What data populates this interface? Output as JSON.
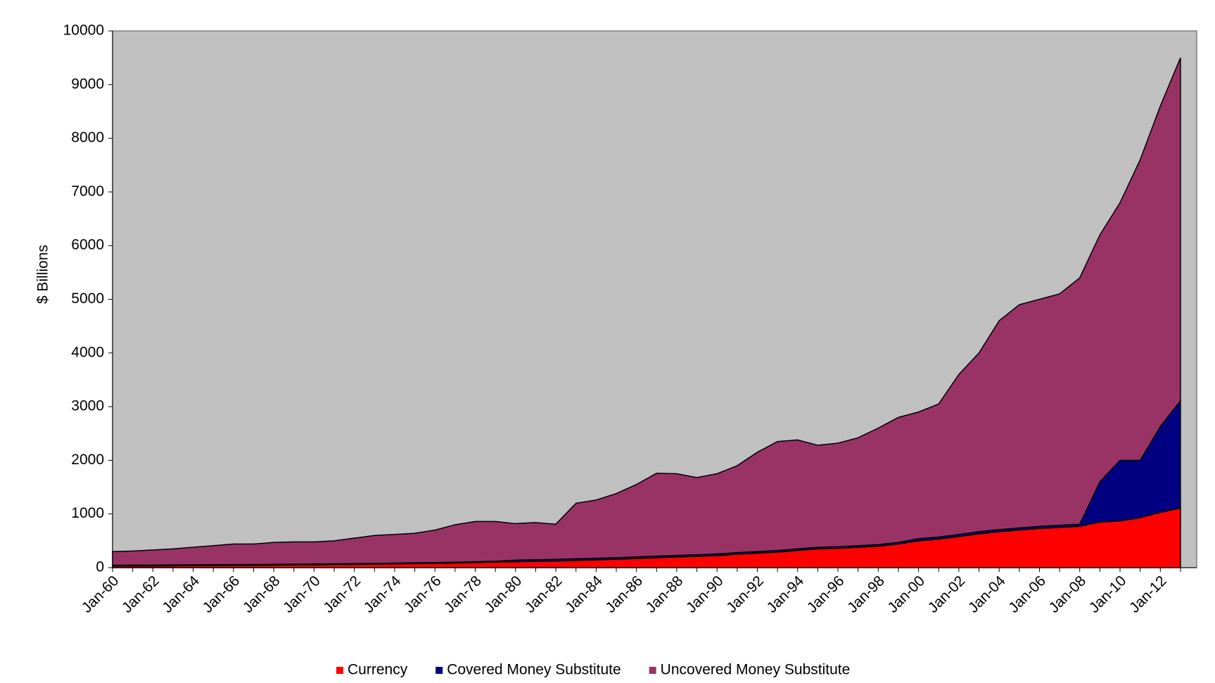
{
  "chart_data": {
    "type": "stacked-area",
    "y_label": "$ Billions",
    "categories": [
      "Jan-60",
      null,
      "Jan-62",
      null,
      "Jan-64",
      null,
      "Jan-66",
      null,
      "Jan-68",
      null,
      "Jan-70",
      null,
      "Jan-72",
      null,
      "Jan-74",
      null,
      "Jan-76",
      null,
      "Jan-78",
      null,
      "Jan-80",
      null,
      "Jan-82",
      null,
      "Jan-84",
      null,
      "Jan-86",
      null,
      "Jan-88",
      null,
      "Jan-90",
      null,
      "Jan-92",
      null,
      "Jan-94",
      null,
      "Jan-96",
      null,
      "Jan-98",
      null,
      "Jan-00",
      null,
      "Jan-02",
      null,
      "Jan-04",
      null,
      "Jan-06",
      null,
      "Jan-08",
      null,
      "Jan-10",
      null,
      "Jan-12",
      null
    ],
    "series": [
      {
        "name": "Currency",
        "color": "#ff0000",
        "values": [
          30,
          32,
          33,
          35,
          37,
          40,
          42,
          44,
          47,
          50,
          53,
          56,
          60,
          64,
          70,
          75,
          80,
          87,
          95,
          104,
          110,
          118,
          125,
          135,
          145,
          155,
          170,
          185,
          200,
          210,
          225,
          250,
          270,
          290,
          320,
          350,
          360,
          380,
          400,
          440,
          500,
          530,
          580,
          630,
          670,
          700,
          730,
          750,
          770,
          850,
          870,
          930,
          1030,
          1110
        ]
      },
      {
        "name": "Covered Money Substitute",
        "color": "#000080",
        "values": [
          15,
          15,
          15,
          15,
          15,
          15,
          15,
          15,
          15,
          15,
          15,
          15,
          15,
          15,
          15,
          15,
          15,
          15,
          15,
          15,
          30,
          30,
          30,
          30,
          30,
          30,
          30,
          30,
          30,
          30,
          30,
          30,
          30,
          30,
          30,
          30,
          30,
          30,
          30,
          30,
          40,
          40,
          40,
          40,
          40,
          40,
          40,
          40,
          40,
          750,
          1130,
          1070,
          1600,
          2000
        ]
      },
      {
        "name": "Uncovered Money Substitute",
        "color": "#993366",
        "values": [
          255,
          263,
          282,
          300,
          328,
          355,
          383,
          381,
          408,
          415,
          412,
          429,
          475,
          521,
          535,
          550,
          605,
          698,
          750,
          741,
          680,
          692,
          655,
          1035,
          1085,
          1195,
          1350,
          1545,
          1520,
          1440,
          1495,
          1620,
          1850,
          2030,
          2030,
          1900,
          1930,
          2010,
          2170,
          2330,
          2360,
          2480,
          2980,
          3330,
          3890,
          4160,
          4230,
          4310,
          4590,
          4600,
          4800,
          5600,
          5970,
          6390
        ]
      }
    ],
    "ylim": [
      0,
      10000
    ],
    "yticks": [
      0,
      1000,
      2000,
      3000,
      4000,
      5000,
      6000,
      7000,
      8000,
      9000,
      10000
    ],
    "plot_background": "#c0c0c0",
    "legend": "bottom"
  }
}
